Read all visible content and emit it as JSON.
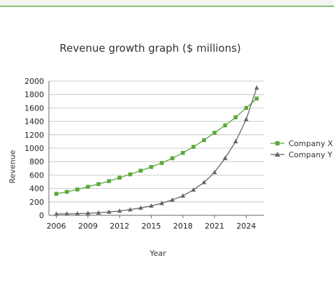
{
  "chart_data": {
    "type": "line",
    "title": "Revenue growth graph ($ millions)",
    "xlabel": "Year",
    "ylabel": "Revenue",
    "xlim": [
      2006,
      2025
    ],
    "ylim": [
      0,
      2000
    ],
    "yticks": [
      0,
      200,
      400,
      600,
      800,
      1000,
      1200,
      1400,
      1600,
      1800,
      2000
    ],
    "xticks": [
      2006,
      2009,
      2012,
      2015,
      2018,
      2021,
      2024
    ],
    "grid": true,
    "legend": "right",
    "x": [
      2006,
      2007,
      2008,
      2009,
      2010,
      2011,
      2012,
      2013,
      2014,
      2015,
      2016,
      2017,
      2018,
      2019,
      2020,
      2021,
      2022,
      2023,
      2024,
      2025
    ],
    "series": [
      {
        "name": "Company X",
        "color": "#5aa83a",
        "marker": "square",
        "values": [
          320,
          350,
          385,
          425,
          465,
          510,
          560,
          610,
          665,
          720,
          780,
          850,
          930,
          1020,
          1120,
          1230,
          1340,
          1460,
          1600,
          1740
        ]
      },
      {
        "name": "Company Y",
        "color": "#666666",
        "marker": "triangle",
        "values": [
          20,
          22,
          25,
          30,
          38,
          50,
          65,
          85,
          110,
          140,
          180,
          230,
          290,
          380,
          490,
          640,
          850,
          1100,
          1430,
          1900
        ]
      }
    ]
  }
}
